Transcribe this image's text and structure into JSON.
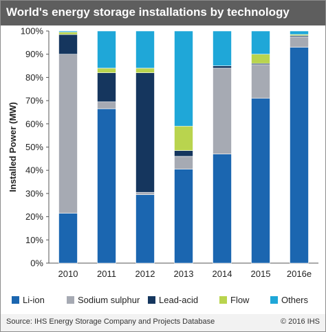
{
  "title": "World's energy storage installations by technology",
  "footer": {
    "source": "Source: IHS Energy Storage Company and Projects Database",
    "copyright": "© 2016 IHS"
  },
  "colors": {
    "Li-ion": "#1b66b0",
    "Sodium sulphur": "#a6aab3",
    "Lead-acid": "#15365e",
    "Flow": "#b9d44e",
    "Others": "#1fa7d8"
  },
  "chart_data": {
    "type": "bar",
    "stacked": true,
    "percent": true,
    "title": "World's energy storage installations by technology",
    "xlabel": "",
    "ylabel": "Installed Power (MW)",
    "ylim": [
      0,
      100
    ],
    "yticks": [
      "0%",
      "10%",
      "20%",
      "30%",
      "40%",
      "50%",
      "60%",
      "70%",
      "80%",
      "90%",
      "100%"
    ],
    "categories": [
      "2010",
      "2011",
      "2012",
      "2013",
      "2014",
      "2015",
      "2016e"
    ],
    "series": [
      {
        "name": "Li-ion",
        "values": [
          21.5,
          66.5,
          29.5,
          40.5,
          47,
          71,
          93
        ]
      },
      {
        "name": "Sodium sulphur",
        "values": [
          68.5,
          3,
          1,
          5.5,
          37,
          14.5,
          4.5
        ]
      },
      {
        "name": "Lead-acid",
        "values": [
          8.5,
          12.5,
          51.5,
          2.5,
          1,
          0.5,
          0.5
        ]
      },
      {
        "name": "Flow",
        "values": [
          1,
          2,
          2,
          10.5,
          0,
          4,
          0.5
        ]
      },
      {
        "name": "Others",
        "values": [
          0.5,
          16,
          16,
          41,
          15,
          10,
          1.5
        ]
      }
    ],
    "grid": false,
    "legend": "bottom"
  }
}
